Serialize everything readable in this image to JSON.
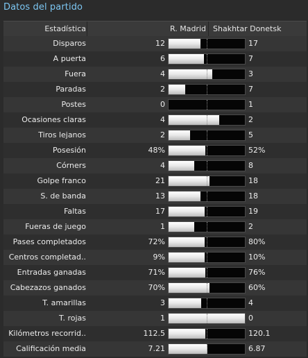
{
  "title": "Datos del partido",
  "header": {
    "stat": "Estadística",
    "home": "R. Madrid",
    "away": "Shakhtar Donetsk"
  },
  "rows": [
    {
      "label": "Disparos",
      "home": "12",
      "away": "17",
      "home_share": 0.414
    },
    {
      "label": "A puerta",
      "home": "6",
      "away": "7",
      "home_share": 0.462
    },
    {
      "label": "Fuera",
      "home": "4",
      "away": "3",
      "home_share": 0.571
    },
    {
      "label": "Paradas",
      "home": "2",
      "away": "7",
      "home_share": 0.222
    },
    {
      "label": "Postes",
      "home": "0",
      "away": "1",
      "home_share": 0.0
    },
    {
      "label": "Ocasiones claras",
      "home": "4",
      "away": "2",
      "home_share": 0.667
    },
    {
      "label": "Tiros lejanos",
      "home": "2",
      "away": "5",
      "home_share": 0.286
    },
    {
      "label": "Posesión",
      "home": "48%",
      "away": "52%",
      "home_share": 0.48
    },
    {
      "label": "Córners",
      "home": "4",
      "away": "8",
      "home_share": 0.333
    },
    {
      "label": "Golpe franco",
      "home": "21",
      "away": "18",
      "home_share": 0.538
    },
    {
      "label": "S. de banda",
      "home": "13",
      "away": "18",
      "home_share": 0.419
    },
    {
      "label": "Faltas",
      "home": "17",
      "away": "19",
      "home_share": 0.472
    },
    {
      "label": "Fueras de juego",
      "home": "1",
      "away": "2",
      "home_share": 0.333
    },
    {
      "label": "Pases completados",
      "home": "72%",
      "away": "80%",
      "home_share": 0.474
    },
    {
      "label": "Centros completad..",
      "home": "9%",
      "away": "10%",
      "home_share": 0.474
    },
    {
      "label": "Entradas ganadas",
      "home": "71%",
      "away": "76%",
      "home_share": 0.483
    },
    {
      "label": "Cabezazos ganados",
      "home": "70%",
      "away": "60%",
      "home_share": 0.538
    },
    {
      "label": "T. amarillas",
      "home": "3",
      "away": "4",
      "home_share": 0.429
    },
    {
      "label": "T. rojas",
      "home": "1",
      "away": "0",
      "home_share": 1.0
    },
    {
      "label": "Kilómetros recorrid..",
      "home": "112.5",
      "away": "120.1",
      "home_share": 0.484
    },
    {
      "label": "Calificación media",
      "home": "7.21",
      "away": "6.87",
      "home_share": 0.512
    }
  ]
}
